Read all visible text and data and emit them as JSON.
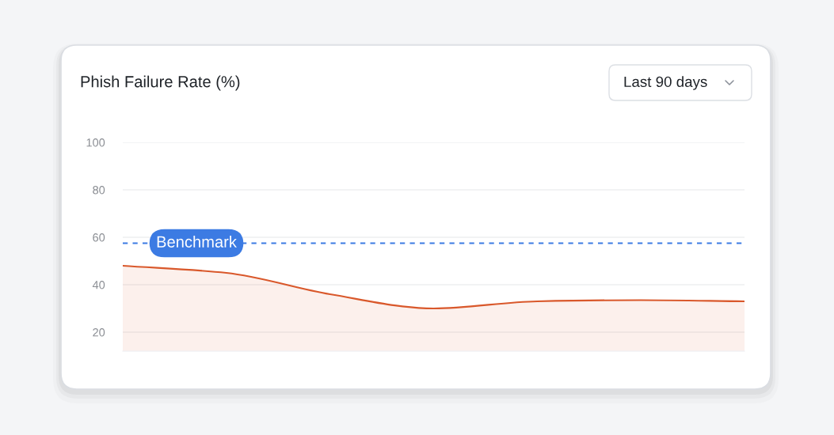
{
  "chart_data": {
    "type": "area",
    "title": "Phish Failure Rate (%)",
    "annotations": [
      "Last 90 days"
    ],
    "categories": [
      null,
      null,
      null,
      null,
      null,
      null,
      null
    ],
    "series": [
      {
        "color": "#d9582b",
        "values": [
          48,
          45,
          36,
          30,
          33,
          33.5,
          33
        ]
      }
    ],
    "ylim": [
      12,
      100
    ],
    "yticks": [
      20,
      40,
      60,
      80,
      100
    ],
    "ref_lines": [
      {
        "axis": "y",
        "value": 57.5,
        "label": "Benchmark",
        "color": "#3c7be3",
        "line_style": "dashed"
      }
    ],
    "grid": "y",
    "tick_labels": "y"
  }
}
